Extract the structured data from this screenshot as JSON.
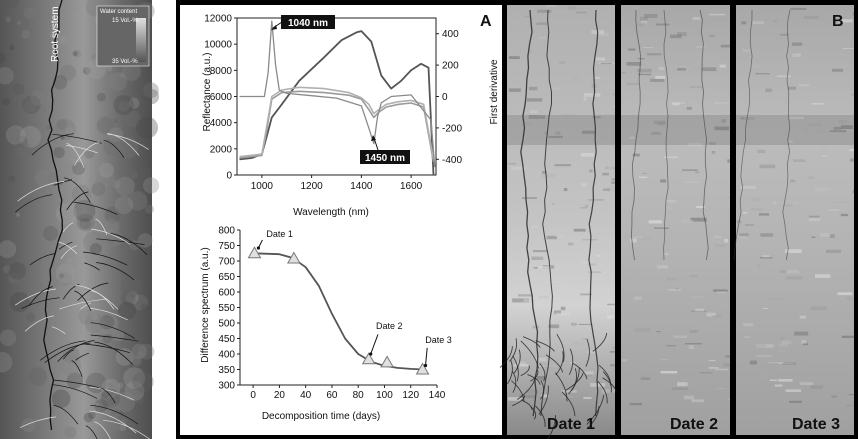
{
  "colors": {
    "frame": "#000000",
    "panel_bg": "#ffffff",
    "image_dark": "#4a4a4a",
    "image_light": "#c8c8c8",
    "curve_dark": "#555555",
    "curve_light": "#9a9a9a",
    "marker_fill": "#e0e0e0"
  },
  "left_image": {
    "root_label": "Root system",
    "legend_title": "Water content",
    "legend_top": "15 Vol.-%",
    "legend_bottom": "35 Vol.-%"
  },
  "panel_a": {
    "letter": "A"
  },
  "panel_b": {
    "letter": "B",
    "date_labels": [
      "Date 1",
      "Date 2",
      "Date 3"
    ]
  },
  "chart_data": [
    {
      "type": "line",
      "xlabel": "Wavelength (nm)",
      "ylabel": "Reflectance (a.u.)",
      "y2label": "First derivative",
      "xlim": [
        900,
        1700
      ],
      "ylim": [
        0,
        12000
      ],
      "y2lim": [
        -500,
        500
      ],
      "xticks": [
        1000,
        1200,
        1400,
        1600
      ],
      "yticks": [
        0,
        2000,
        4000,
        6000,
        8000,
        10000,
        12000
      ],
      "y2ticks": [
        -400,
        -200,
        0,
        200,
        400
      ],
      "annotations": [
        "1040 nm",
        "1450 nm"
      ],
      "series": [
        {
          "axis": "left",
          "x": [
            910,
            960,
            1000,
            1020,
            1040,
            1080,
            1150,
            1250,
            1320,
            1380,
            1400,
            1440,
            1480,
            1520,
            1560,
            1600,
            1640,
            1670,
            1690
          ],
          "values": [
            1200,
            1300,
            1600,
            3000,
            4400,
            5400,
            7200,
            9000,
            10300,
            10900,
            11000,
            10200,
            7600,
            6600,
            7200,
            8000,
            8500,
            8200,
            0
          ]
        },
        {
          "axis": "left",
          "x": [
            910,
            1000,
            1020,
            1040,
            1080,
            1150,
            1250,
            1350,
            1400,
            1430,
            1450,
            1470,
            1500,
            1550,
            1600,
            1650,
            1690
          ],
          "values": [
            1300,
            1500,
            3500,
            5800,
            6300,
            6400,
            6300,
            6100,
            5800,
            5000,
            4400,
            4800,
            5200,
            5400,
            5500,
            5200,
            1000
          ]
        },
        {
          "axis": "left",
          "x": [
            910,
            1000,
            1020,
            1040,
            1080,
            1150,
            1250,
            1350,
            1400,
            1430,
            1450,
            1470,
            1500,
            1550,
            1600,
            1650,
            1690
          ],
          "values": [
            1400,
            1600,
            3800,
            6000,
            6500,
            6700,
            6600,
            6300,
            5900,
            5400,
            4700,
            5000,
            5400,
            5600,
            5700,
            5400,
            1200
          ]
        },
        {
          "axis": "right",
          "x": [
            910,
            980,
            1010,
            1025,
            1040,
            1055,
            1070,
            1100,
            1200,
            1300,
            1400,
            1430,
            1450,
            1465,
            1480,
            1520,
            1600,
            1680,
            1695
          ],
          "values": [
            0,
            0,
            0,
            150,
            480,
            200,
            40,
            20,
            5,
            -10,
            -60,
            -200,
            -300,
            -130,
            -40,
            0,
            10,
            -150,
            -450
          ]
        }
      ]
    },
    {
      "type": "scatter",
      "xlabel": "Decomposition time (days)",
      "ylabel": "Difference spectrum (a.u.)",
      "xlim": [
        -10,
        140
      ],
      "ylim": [
        300,
        800
      ],
      "xticks": [
        0,
        20,
        40,
        60,
        80,
        100,
        120,
        140
      ],
      "yticks": [
        300,
        350,
        400,
        450,
        500,
        550,
        600,
        650,
        700,
        750,
        800
      ],
      "points": [
        {
          "x": 1,
          "y": 725
        },
        {
          "x": 31,
          "y": 708
        },
        {
          "x": 88,
          "y": 383
        },
        {
          "x": 102,
          "y": 373
        },
        {
          "x": 129,
          "y": 350
        }
      ],
      "fit": {
        "x": [
          0,
          20,
          30,
          40,
          50,
          60,
          70,
          80,
          90,
          100,
          110,
          120,
          130
        ],
        "values": [
          725,
          722,
          710,
          680,
          620,
          530,
          450,
          400,
          375,
          362,
          355,
          352,
          350
        ]
      },
      "annotations": [
        "Date 1",
        "Date 2",
        "Date 3"
      ]
    }
  ]
}
